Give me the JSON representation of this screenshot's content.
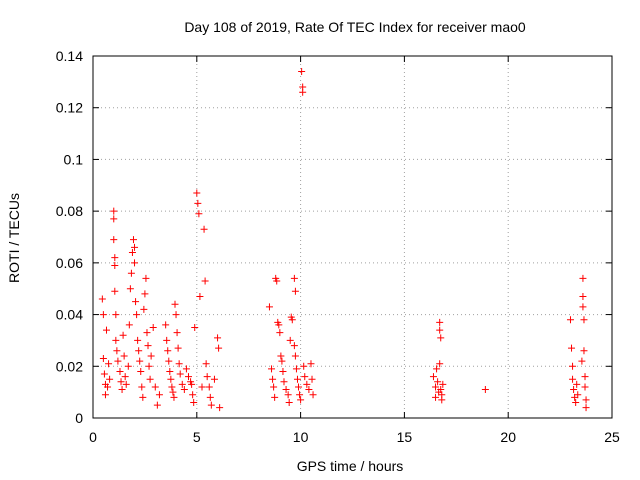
{
  "chart_data": {
    "type": "scatter",
    "title": "Day 108 of 2019, Rate Of TEC Index for receiver mao0",
    "xlabel": "GPS time / hours",
    "ylabel": "ROTI / TECUs",
    "xlim": [
      0,
      25
    ],
    "ylim": [
      0,
      0.14
    ],
    "xticks": [
      0,
      5,
      10,
      15,
      20,
      25
    ],
    "xtick_labels": [
      "0",
      "5",
      "10",
      "15",
      "20",
      "25"
    ],
    "yticks": [
      0,
      0.02,
      0.04,
      0.06,
      0.08,
      0.1,
      0.12,
      0.14
    ],
    "ytick_labels": [
      "0",
      "0.02",
      "0.04",
      "0.06",
      "0.08",
      "0.1",
      "0.12",
      "0.14"
    ],
    "grid": true,
    "marker": "+",
    "color": "#ff0000",
    "series": [
      {
        "name": "ROTI",
        "points": [
          [
            0.45,
            0.046
          ],
          [
            0.5,
            0.04
          ],
          [
            0.5,
            0.023
          ],
          [
            0.55,
            0.017
          ],
          [
            0.6,
            0.013
          ],
          [
            0.6,
            0.009
          ],
          [
            0.65,
            0.034
          ],
          [
            0.7,
            0.012
          ],
          [
            0.75,
            0.021
          ],
          [
            0.8,
            0.015
          ],
          [
            1.0,
            0.08
          ],
          [
            1.0,
            0.077
          ],
          [
            1.0,
            0.069
          ],
          [
            1.05,
            0.062
          ],
          [
            1.05,
            0.059
          ],
          [
            1.05,
            0.049
          ],
          [
            1.1,
            0.04
          ],
          [
            1.1,
            0.03
          ],
          [
            1.15,
            0.026
          ],
          [
            1.2,
            0.022
          ],
          [
            1.3,
            0.018
          ],
          [
            1.35,
            0.014
          ],
          [
            1.4,
            0.011
          ],
          [
            1.45,
            0.032
          ],
          [
            1.5,
            0.024
          ],
          [
            1.55,
            0.016
          ],
          [
            1.6,
            0.013
          ],
          [
            1.7,
            0.02
          ],
          [
            1.75,
            0.036
          ],
          [
            1.8,
            0.05
          ],
          [
            1.85,
            0.056
          ],
          [
            1.9,
            0.064
          ],
          [
            1.95,
            0.069
          ],
          [
            2.0,
            0.066
          ],
          [
            2.0,
            0.06
          ],
          [
            2.05,
            0.045
          ],
          [
            2.1,
            0.04
          ],
          [
            2.15,
            0.03
          ],
          [
            2.2,
            0.026
          ],
          [
            2.25,
            0.022
          ],
          [
            2.3,
            0.018
          ],
          [
            2.35,
            0.012
          ],
          [
            2.4,
            0.008
          ],
          [
            2.45,
            0.042
          ],
          [
            2.5,
            0.048
          ],
          [
            2.55,
            0.054
          ],
          [
            2.6,
            0.033
          ],
          [
            2.65,
            0.028
          ],
          [
            2.7,
            0.02
          ],
          [
            2.75,
            0.015
          ],
          [
            2.8,
            0.024
          ],
          [
            2.9,
            0.035
          ],
          [
            3.0,
            0.012
          ],
          [
            3.1,
            0.005
          ],
          [
            3.2,
            0.009
          ],
          [
            3.5,
            0.036
          ],
          [
            3.55,
            0.03
          ],
          [
            3.6,
            0.026
          ],
          [
            3.65,
            0.022
          ],
          [
            3.7,
            0.018
          ],
          [
            3.75,
            0.015
          ],
          [
            3.8,
            0.012
          ],
          [
            3.85,
            0.01
          ],
          [
            3.9,
            0.008
          ],
          [
            3.95,
            0.044
          ],
          [
            4.0,
            0.04
          ],
          [
            4.05,
            0.033
          ],
          [
            4.1,
            0.027
          ],
          [
            4.15,
            0.021
          ],
          [
            4.2,
            0.017
          ],
          [
            4.3,
            0.013
          ],
          [
            4.4,
            0.011
          ],
          [
            4.5,
            0.019
          ],
          [
            4.6,
            0.016
          ],
          [
            4.7,
            0.014
          ],
          [
            4.75,
            0.013
          ],
          [
            4.8,
            0.009
          ],
          [
            4.85,
            0.006
          ],
          [
            4.9,
            0.035
          ],
          [
            5.0,
            0.087
          ],
          [
            5.05,
            0.083
          ],
          [
            5.1,
            0.079
          ],
          [
            5.15,
            0.047
          ],
          [
            5.25,
            0.012
          ],
          [
            5.35,
            0.073
          ],
          [
            5.4,
            0.053
          ],
          [
            5.45,
            0.021
          ],
          [
            5.5,
            0.016
          ],
          [
            5.6,
            0.012
          ],
          [
            5.65,
            0.008
          ],
          [
            5.7,
            0.005
          ],
          [
            5.85,
            0.015
          ],
          [
            6.0,
            0.031
          ],
          [
            6.05,
            0.027
          ],
          [
            6.1,
            0.004
          ],
          [
            8.5,
            0.043
          ],
          [
            8.6,
            0.019
          ],
          [
            8.65,
            0.015
          ],
          [
            8.7,
            0.012
          ],
          [
            8.75,
            0.008
          ],
          [
            8.8,
            0.054
          ],
          [
            8.85,
            0.053
          ],
          [
            8.9,
            0.037
          ],
          [
            8.95,
            0.036
          ],
          [
            9.0,
            0.033
          ],
          [
            9.05,
            0.024
          ],
          [
            9.1,
            0.022
          ],
          [
            9.15,
            0.018
          ],
          [
            9.2,
            0.014
          ],
          [
            9.3,
            0.011
          ],
          [
            9.4,
            0.009
          ],
          [
            9.45,
            0.006
          ],
          [
            9.5,
            0.03
          ],
          [
            9.55,
            0.039
          ],
          [
            9.6,
            0.038
          ],
          [
            9.7,
            0.028
          ],
          [
            9.75,
            0.024
          ],
          [
            9.8,
            0.019
          ],
          [
            9.85,
            0.015
          ],
          [
            9.9,
            0.012
          ],
          [
            9.95,
            0.009
          ],
          [
            10.0,
            0.007
          ],
          [
            10.05,
            0.134
          ],
          [
            10.1,
            0.128
          ],
          [
            10.1,
            0.126
          ],
          [
            10.15,
            0.02
          ],
          [
            10.2,
            0.016
          ],
          [
            10.3,
            0.013
          ],
          [
            10.4,
            0.011
          ],
          [
            10.5,
            0.021
          ],
          [
            10.55,
            0.015
          ],
          [
            10.6,
            0.009
          ],
          [
            9.75,
            0.049
          ],
          [
            9.7,
            0.054
          ],
          [
            16.4,
            0.016
          ],
          [
            16.5,
            0.012
          ],
          [
            16.5,
            0.008
          ],
          [
            16.55,
            0.019
          ],
          [
            16.6,
            0.014
          ],
          [
            16.65,
            0.01
          ],
          [
            16.7,
            0.021
          ],
          [
            16.7,
            0.037
          ],
          [
            16.7,
            0.034
          ],
          [
            16.75,
            0.031
          ],
          [
            16.75,
            0.011
          ],
          [
            16.8,
            0.009
          ],
          [
            16.8,
            0.007
          ],
          [
            16.85,
            0.013
          ],
          [
            18.9,
            0.011
          ],
          [
            23.0,
            0.038
          ],
          [
            23.05,
            0.027
          ],
          [
            23.1,
            0.02
          ],
          [
            23.1,
            0.015
          ],
          [
            23.15,
            0.011
          ],
          [
            23.2,
            0.008
          ],
          [
            23.25,
            0.006
          ],
          [
            23.3,
            0.013
          ],
          [
            23.35,
            0.009
          ],
          [
            23.55,
            0.022
          ],
          [
            23.6,
            0.054
          ],
          [
            23.6,
            0.047
          ],
          [
            23.6,
            0.043
          ],
          [
            23.65,
            0.038
          ],
          [
            23.65,
            0.026
          ],
          [
            23.7,
            0.016
          ],
          [
            23.7,
            0.012
          ],
          [
            23.75,
            0.007
          ],
          [
            23.75,
            0.004
          ]
        ]
      }
    ]
  }
}
